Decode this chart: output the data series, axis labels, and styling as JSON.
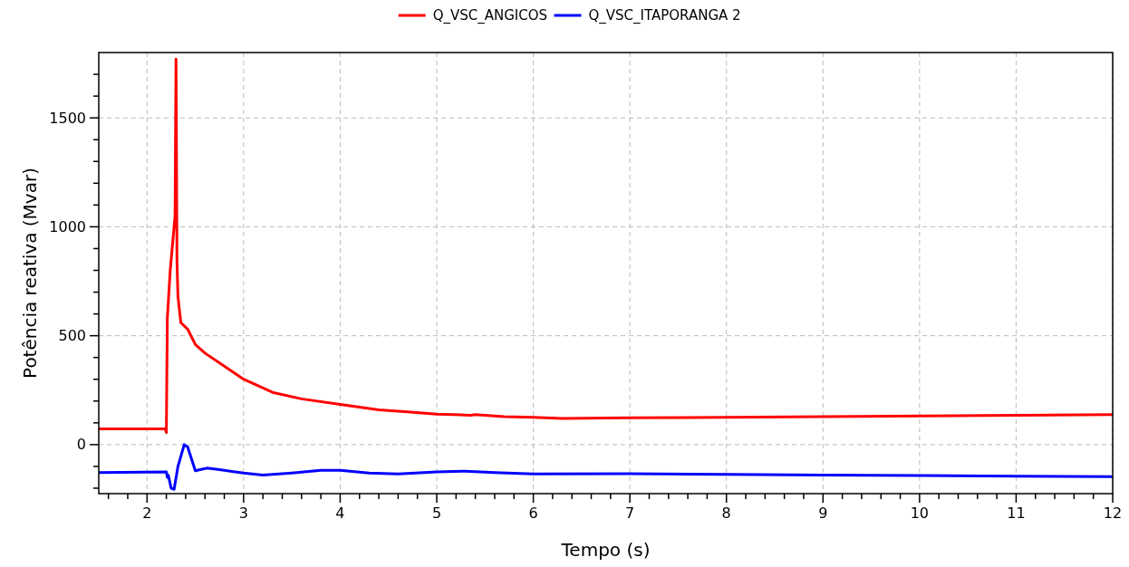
{
  "chart_data": {
    "type": "line",
    "xlabel": "Tempo (s)",
    "ylabel": "Potência reativa (Mvar)",
    "xlim": [
      1.5,
      12
    ],
    "ylim": [
      -225,
      1800
    ],
    "xticks": [
      {
        "value": 1.6,
        "label": null
      },
      {
        "value": 1.8,
        "label": null
      },
      2,
      {
        "value": 2.2,
        "label": null
      },
      {
        "value": 2.4,
        "label": null
      },
      {
        "value": 2.6,
        "label": null
      },
      {
        "value": 2.8,
        "label": null
      },
      3,
      {
        "value": 3.2,
        "label": null
      },
      {
        "value": 3.4,
        "label": null
      },
      {
        "value": 3.6,
        "label": null
      },
      {
        "value": 3.8,
        "label": null
      },
      4,
      {
        "value": 4.2,
        "label": null
      },
      {
        "value": 4.4,
        "label": null
      },
      {
        "value": 4.6,
        "label": null
      },
      {
        "value": 4.8,
        "label": null
      },
      5,
      {
        "value": 5.2,
        "label": null
      },
      {
        "value": 5.4,
        "label": null
      },
      {
        "value": 5.6,
        "label": null
      },
      {
        "value": 5.8,
        "label": null
      },
      6,
      {
        "value": 6.2,
        "label": null
      },
      {
        "value": 6.4,
        "label": null
      },
      {
        "value": 6.6,
        "label": null
      },
      {
        "value": 6.8,
        "label": null
      },
      7,
      {
        "value": 7.2,
        "label": null
      },
      {
        "value": 7.4,
        "label": null
      },
      {
        "value": 7.6,
        "label": null
      },
      {
        "value": 7.8,
        "label": null
      },
      8,
      {
        "value": 8.2,
        "label": null
      },
      {
        "value": 8.4,
        "label": null
      },
      {
        "value": 8.6,
        "label": null
      },
      {
        "value": 8.8,
        "label": null
      },
      9,
      {
        "value": 9.2,
        "label": null
      },
      {
        "value": 9.4,
        "label": null
      },
      {
        "value": 9.6,
        "label": null
      },
      {
        "value": 9.8,
        "label": null
      },
      10,
      {
        "value": 10.2,
        "label": null
      },
      {
        "value": 10.4,
        "label": null
      },
      {
        "value": 10.6,
        "label": null
      },
      {
        "value": 10.8,
        "label": null
      },
      11,
      {
        "value": 11.2,
        "label": null
      },
      {
        "value": 11.4,
        "label": null
      },
      {
        "value": 11.6,
        "label": null
      },
      {
        "value": 11.8,
        "label": null
      },
      12
    ],
    "yticks": [
      {
        "value": -200,
        "label": null
      },
      {
        "value": -100,
        "label": null
      },
      0,
      {
        "value": 100,
        "label": null
      },
      {
        "value": 200,
        "label": null
      },
      {
        "value": 300,
        "label": null
      },
      {
        "value": 400,
        "label": null
      },
      500,
      {
        "value": 600,
        "label": null
      },
      {
        "value": 700,
        "label": null
      },
      {
        "value": 800,
        "label": null
      },
      {
        "value": 900,
        "label": null
      },
      1000,
      {
        "value": 1100,
        "label": null
      },
      {
        "value": 1200,
        "label": null
      },
      {
        "value": 1300,
        "label": null
      },
      {
        "value": 1400,
        "label": null
      },
      1500,
      {
        "value": 1600,
        "label": null
      },
      {
        "value": 1700,
        "label": null
      }
    ],
    "grid": true,
    "legend": "top",
    "line_style": "solid",
    "marker": "none",
    "series": [
      {
        "name": "Q_VSC_ANGICOS",
        "color": "#ff0000",
        "x": [
          1.5,
          2.19,
          2.2,
          2.21,
          2.24,
          2.28,
          2.29,
          2.3,
          2.31,
          2.32,
          2.35,
          2.42,
          2.5,
          2.6,
          2.8,
          3,
          3.3,
          3.6,
          4,
          4.4,
          4.7,
          5,
          5.35,
          5.4,
          5.7,
          6,
          6.3,
          7,
          8,
          9,
          10,
          11,
          12
        ],
        "values": [
          72,
          72,
          55,
          580,
          800,
          1000,
          1050,
          1770,
          840,
          680,
          560,
          530,
          460,
          420,
          360,
          300,
          240,
          210,
          185,
          160,
          150,
          140,
          135,
          138,
          128,
          125,
          120,
          123,
          125,
          128,
          132,
          135,
          138
        ]
      },
      {
        "name": "Q_VSC_ITAPORANGA 2",
        "color": "#0000ff",
        "x": [
          1.5,
          2.2,
          2.21,
          2.22,
          2.25,
          2.28,
          2.32,
          2.385,
          2.42,
          2.5,
          2.55,
          2.62,
          2.75,
          3,
          3.2,
          3.5,
          3.8,
          4,
          4.3,
          4.6,
          5,
          5.3,
          5.6,
          6,
          7,
          8,
          9,
          10,
          11,
          12
        ],
        "values": [
          -128,
          -125,
          -150,
          -140,
          -200,
          -205,
          -100,
          0,
          -10,
          -120,
          -115,
          -108,
          -115,
          -130,
          -140,
          -130,
          -118,
          -118,
          -130,
          -135,
          -125,
          -122,
          -128,
          -135,
          -133,
          -137,
          -140,
          -142,
          -145,
          -147
        ]
      }
    ]
  }
}
